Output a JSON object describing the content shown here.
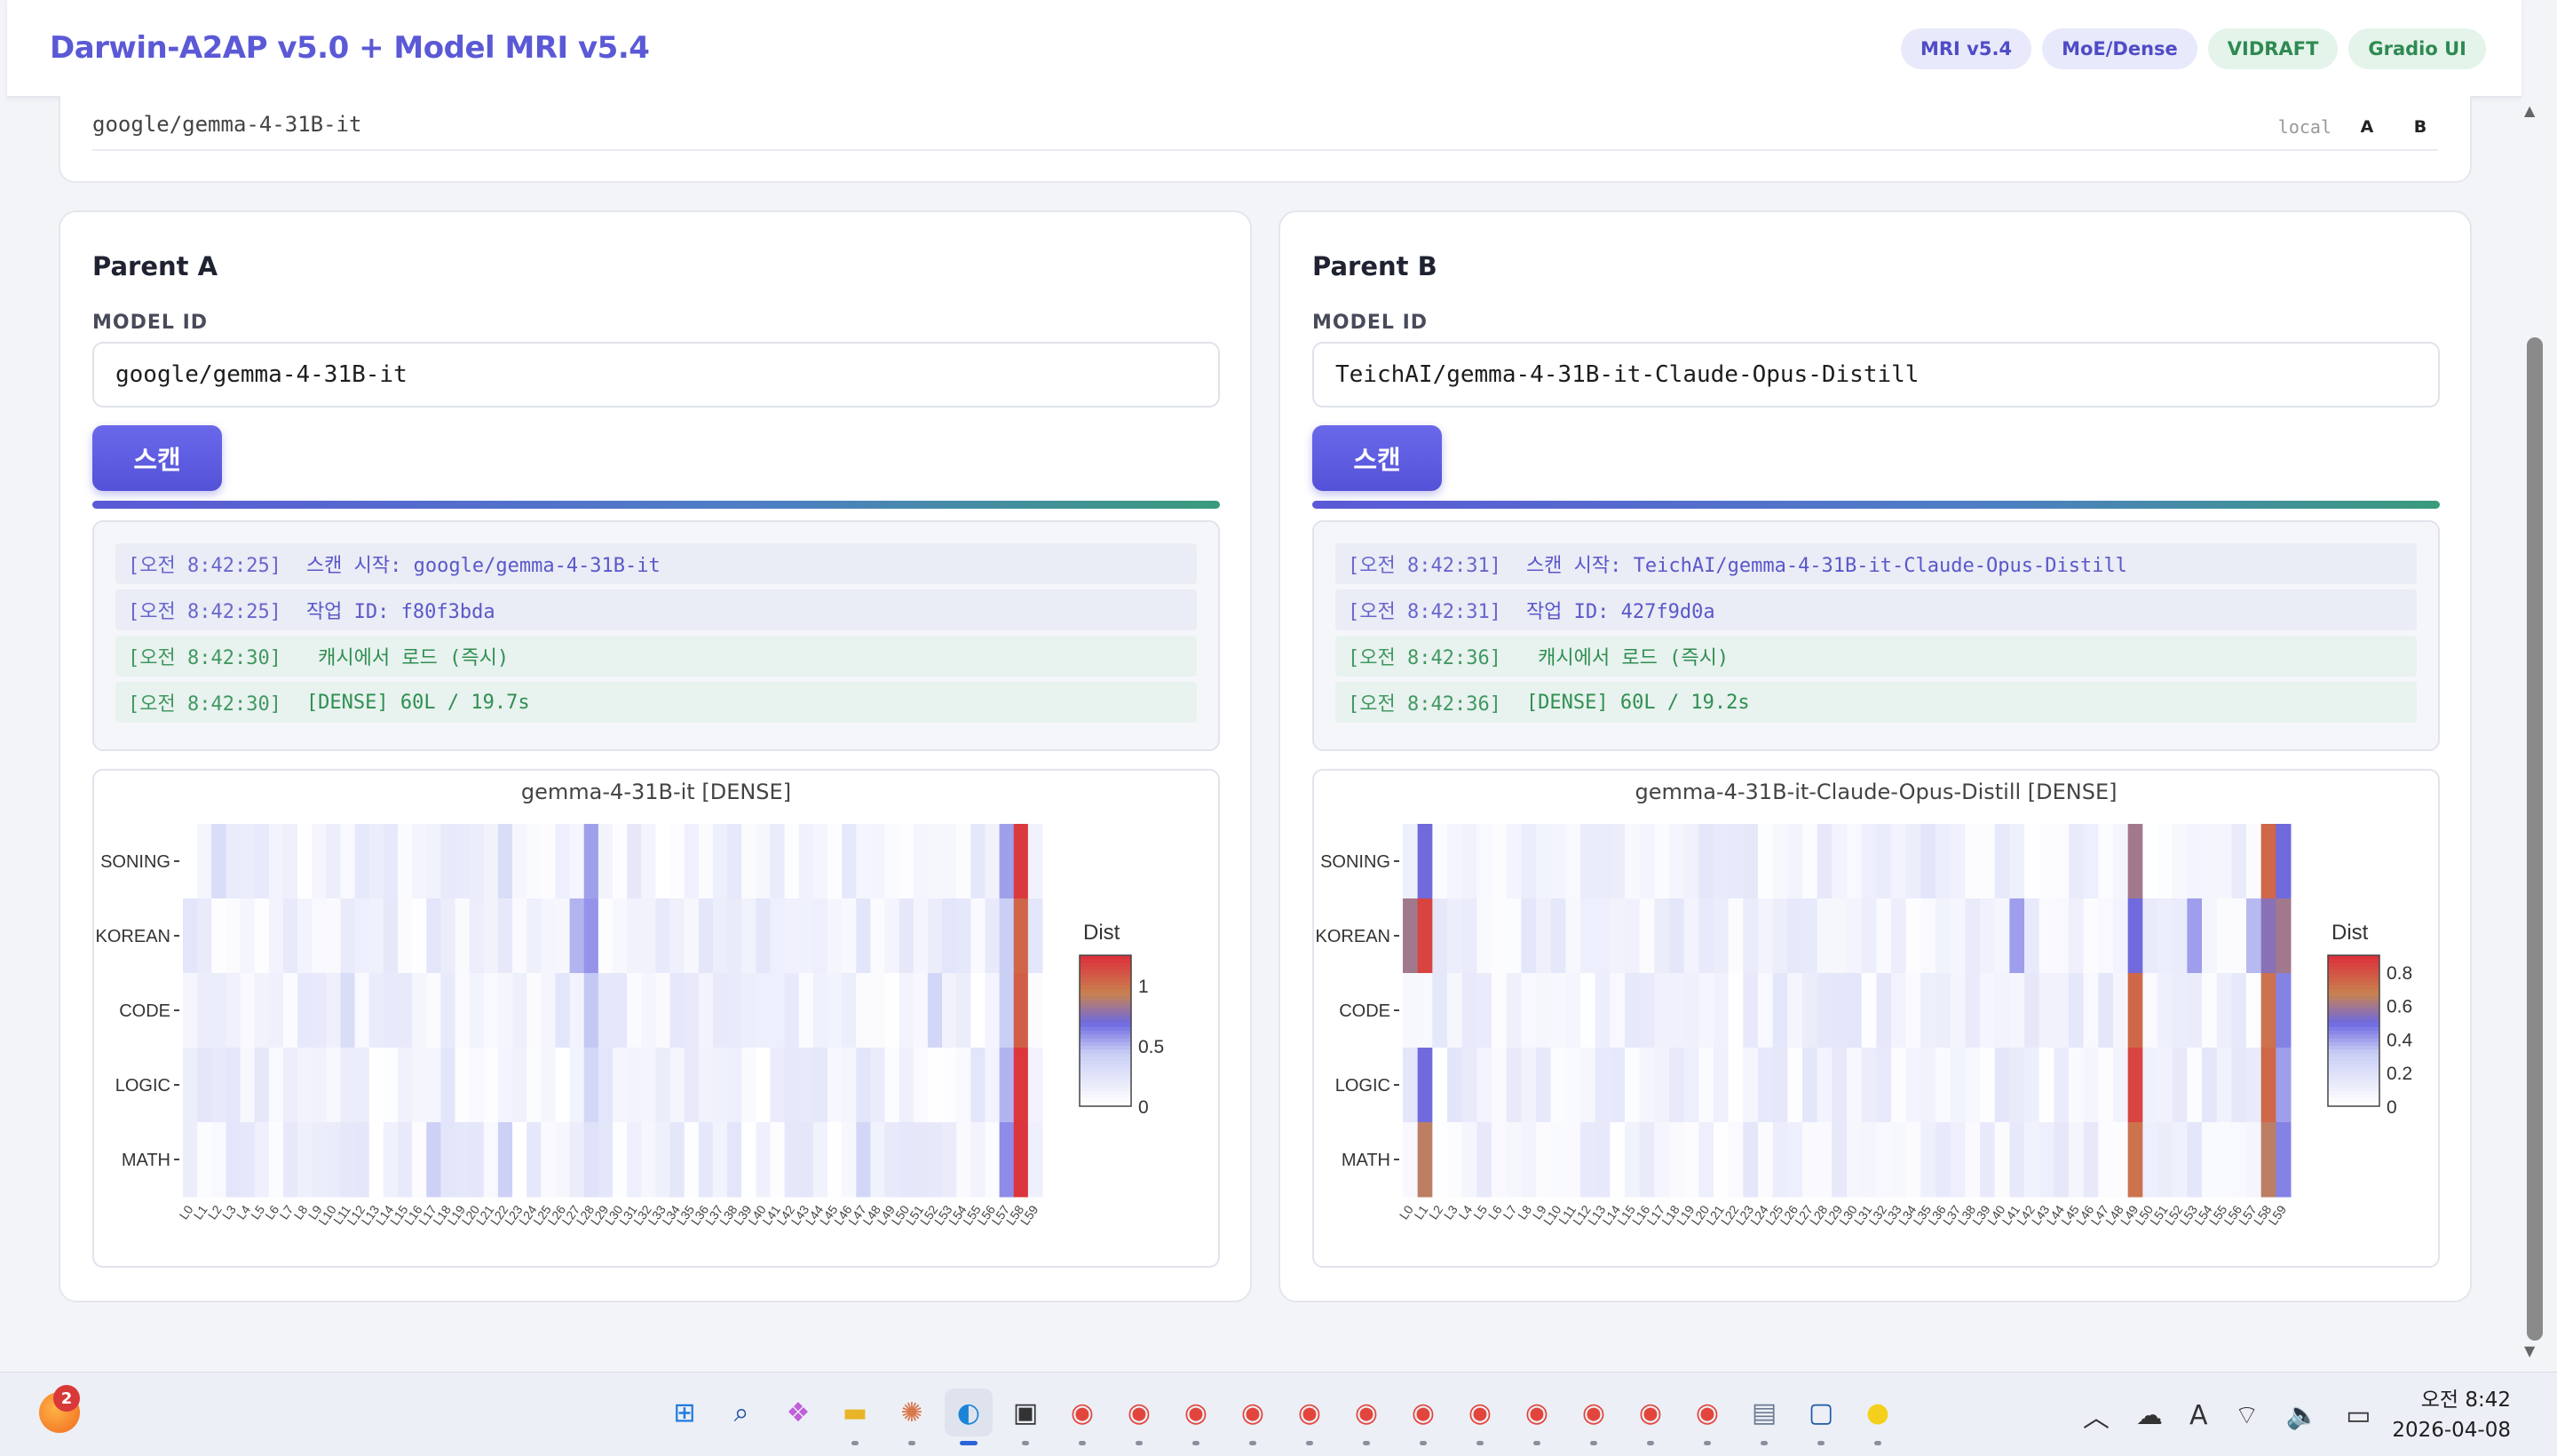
{
  "header": {
    "title": "Darwin-A2AP v5.0 + Model MRI v5.4",
    "badges": [
      "MRI v5.4",
      "MoE/Dense",
      "VIDRAFT",
      "Gradio UI"
    ]
  },
  "strip": {
    "model_id": "google/gemma-4-31B-it",
    "local_label": "local",
    "btn_a": "A",
    "btn_b": "B"
  },
  "parents": [
    {
      "title": "Parent A",
      "field_label": "MODEL ID",
      "model_id": "google/gemma-4-31B-it",
      "scan_label": "스캔",
      "logs": [
        {
          "time": "[오전 8:42:25]",
          "msg": "스캔 시작: google/gemma-4-31B-it",
          "kind": "info"
        },
        {
          "time": "[오전 8:42:25]",
          "msg": "작업 ID: f80f3bda",
          "kind": "info"
        },
        {
          "time": "[오전 8:42:30]",
          "msg": " 캐시에서 로드 (즉시)",
          "kind": "ok"
        },
        {
          "time": "[오전 8:42:30]",
          "msg": "[DENSE] 60L / 19.7s",
          "kind": "ok"
        }
      ]
    },
    {
      "title": "Parent B",
      "field_label": "MODEL ID",
      "model_id": "TeichAI/gemma-4-31B-it-Claude-Opus-Distill",
      "scan_label": "스캔",
      "logs": [
        {
          "time": "[오전 8:42:31]",
          "msg": "스캔 시작: TeichAI/gemma-4-31B-it-Claude-Opus-Distill",
          "kind": "info"
        },
        {
          "time": "[오전 8:42:31]",
          "msg": "작업 ID: 427f9d0a",
          "kind": "info"
        },
        {
          "time": "[오전 8:42:36]",
          "msg": " 캐시에서 로드 (즉시)",
          "kind": "ok"
        },
        {
          "time": "[오전 8:42:36]",
          "msg": "[DENSE] 60L / 19.2s",
          "kind": "ok"
        }
      ]
    }
  ],
  "chart_data": [
    {
      "type": "heatmap",
      "title": "gemma-4-31B-it [DENSE]",
      "rows": [
        "SONING",
        "KOREAN",
        "CODE",
        "LOGIC",
        "MATH"
      ],
      "x_prefix": "L",
      "layers": 60,
      "colorbar_title": "Dist",
      "colorbar_ticks": [
        "1",
        "0.5",
        "0"
      ],
      "zmax": 1.25,
      "hot": [
        {
          "row": 0,
          "col": 58,
          "v": 1.22
        },
        {
          "row": 1,
          "col": 58,
          "v": 1.05
        },
        {
          "row": 2,
          "col": 58,
          "v": 1.08
        },
        {
          "row": 3,
          "col": 58,
          "v": 1.23
        },
        {
          "row": 4,
          "col": 58,
          "v": 1.24
        },
        {
          "row": 0,
          "col": 57,
          "v": 0.55
        },
        {
          "row": 1,
          "col": 57,
          "v": 0.42
        },
        {
          "row": 2,
          "col": 57,
          "v": 0.42
        },
        {
          "row": 3,
          "col": 57,
          "v": 0.5
        },
        {
          "row": 4,
          "col": 57,
          "v": 0.6
        },
        {
          "row": 0,
          "col": 28,
          "v": 0.55
        },
        {
          "row": 1,
          "col": 28,
          "v": 0.58
        },
        {
          "row": 2,
          "col": 28,
          "v": 0.45
        },
        {
          "row": 3,
          "col": 28,
          "v": 0.35
        },
        {
          "row": 4,
          "col": 28,
          "v": 0.25
        },
        {
          "row": 1,
          "col": 27,
          "v": 0.5
        },
        {
          "row": 0,
          "col": 22,
          "v": 0.3
        },
        {
          "row": 4,
          "col": 22,
          "v": 0.4
        },
        {
          "row": 4,
          "col": 17,
          "v": 0.4
        },
        {
          "row": 0,
          "col": 2,
          "v": 0.3
        },
        {
          "row": 2,
          "col": 11,
          "v": 0.3
        },
        {
          "row": 2,
          "col": 52,
          "v": 0.35
        },
        {
          "row": 4,
          "col": 47,
          "v": 0.35
        }
      ]
    },
    {
      "type": "heatmap",
      "title": "gemma-4-31B-it-Claude-Opus-Distill [DENSE]",
      "rows": [
        "SONING",
        "KOREAN",
        "CODE",
        "LOGIC",
        "MATH"
      ],
      "x_prefix": "L",
      "layers": 60,
      "colorbar_title": "Dist",
      "colorbar_ticks": [
        "0.8",
        "0.6",
        "0.4",
        "0.2",
        "0"
      ],
      "zmax": 0.9,
      "hot": [
        {
          "row": 0,
          "col": 1,
          "v": 0.5
        },
        {
          "row": 1,
          "col": 0,
          "v": 0.6
        },
        {
          "row": 1,
          "col": 1,
          "v": 0.85
        },
        {
          "row": 3,
          "col": 1,
          "v": 0.5
        },
        {
          "row": 4,
          "col": 1,
          "v": 0.65
        },
        {
          "row": 0,
          "col": 49,
          "v": 0.6
        },
        {
          "row": 1,
          "col": 49,
          "v": 0.5
        },
        {
          "row": 2,
          "col": 49,
          "v": 0.75
        },
        {
          "row": 3,
          "col": 49,
          "v": 0.85
        },
        {
          "row": 4,
          "col": 49,
          "v": 0.72
        },
        {
          "row": 0,
          "col": 58,
          "v": 0.75
        },
        {
          "row": 1,
          "col": 58,
          "v": 0.55
        },
        {
          "row": 2,
          "col": 58,
          "v": 0.72
        },
        {
          "row": 3,
          "col": 58,
          "v": 0.75
        },
        {
          "row": 4,
          "col": 58,
          "v": 0.65
        },
        {
          "row": 0,
          "col": 59,
          "v": 0.5
        },
        {
          "row": 1,
          "col": 59,
          "v": 0.6
        },
        {
          "row": 2,
          "col": 59,
          "v": 0.45
        },
        {
          "row": 3,
          "col": 59,
          "v": 0.4
        },
        {
          "row": 4,
          "col": 59,
          "v": 0.45
        },
        {
          "row": 1,
          "col": 41,
          "v": 0.4
        },
        {
          "row": 1,
          "col": 53,
          "v": 0.4
        },
        {
          "row": 1,
          "col": 57,
          "v": 0.35
        }
      ]
    }
  ],
  "taskbar": {
    "notify_count": "2",
    "icons": [
      "windows-icon",
      "search-icon",
      "copilot-icon",
      "folder-icon",
      "claude-icon",
      "edge-icon",
      "terminal-icon",
      "chrome-icon",
      "chrome-icon",
      "chrome-icon",
      "chrome-icon",
      "chrome-icon",
      "chrome-icon",
      "chrome-icon",
      "chrome-icon",
      "chrome-icon",
      "chrome-icon",
      "chrome-icon",
      "chrome-icon",
      "notepad-icon",
      "app-icon",
      "kakaotalk-icon"
    ],
    "clock_time": "오전 8:42",
    "clock_date": "2026-04-08"
  }
}
